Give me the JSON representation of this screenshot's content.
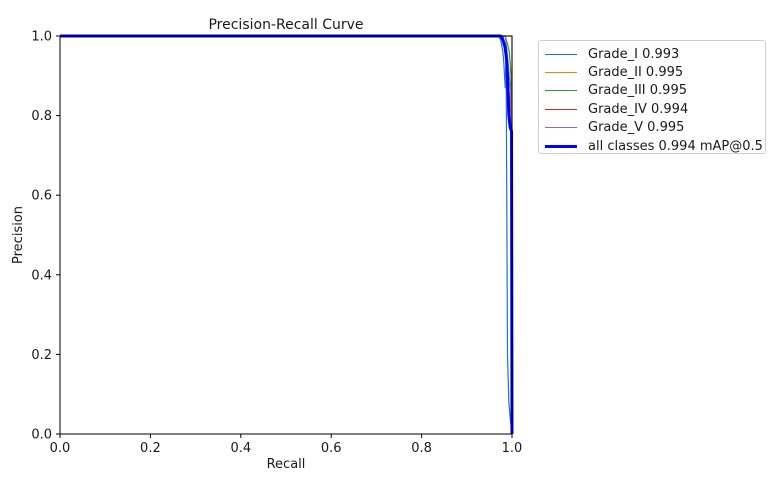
{
  "chart_data": {
    "type": "line",
    "title": "Precision-Recall Curve",
    "xlabel": "Recall",
    "ylabel": "Precision",
    "xlim": [
      0.0,
      1.0
    ],
    "ylim": [
      0.0,
      1.0
    ],
    "xticks": [
      "0.0",
      "0.2",
      "0.4",
      "0.6",
      "0.8",
      "1.0"
    ],
    "yticks": [
      "0.0",
      "0.2",
      "0.4",
      "0.6",
      "0.8",
      "1.0"
    ],
    "grid": false,
    "legend_position": "outside-right-top",
    "series": [
      {
        "name": "Grade_I 0.993",
        "color": "#1f77b4",
        "width": "thin",
        "x": [
          0.0,
          0.97,
          0.975,
          0.98,
          0.982,
          0.985,
          0.987,
          0.99,
          0.993,
          0.996,
          1.0
        ],
        "y": [
          1.0,
          1.0,
          0.99,
          0.96,
          0.93,
          0.87,
          0.95,
          0.2,
          0.08,
          0.04,
          0.0
        ]
      },
      {
        "name": "Grade_II 0.995",
        "color": "#ff7f0e",
        "width": "thin",
        "x": [
          0.0,
          0.99,
          0.995,
          0.998,
          1.0,
          1.0
        ],
        "y": [
          1.0,
          1.0,
          1.0,
          1.0,
          1.0,
          0.0
        ]
      },
      {
        "name": "Grade_III 0.995",
        "color": "#2ca02c",
        "width": "thin",
        "x": [
          0.0,
          0.985,
          0.99,
          0.994,
          0.998,
          1.0
        ],
        "y": [
          1.0,
          1.0,
          0.98,
          0.96,
          0.9,
          0.0
        ]
      },
      {
        "name": "Grade_IV 0.994",
        "color": "#d62728",
        "width": "thin",
        "x": [
          0.0,
          0.98,
          0.985,
          0.99,
          0.994,
          0.998,
          1.0
        ],
        "y": [
          1.0,
          1.0,
          0.97,
          0.92,
          0.85,
          0.8,
          0.0
        ]
      },
      {
        "name": "Grade_V 0.995",
        "color": "#9467bd",
        "width": "thin",
        "x": [
          0.0,
          0.985,
          0.99,
          0.994,
          0.997,
          1.0
        ],
        "y": [
          1.0,
          1.0,
          0.95,
          0.9,
          0.86,
          0.0
        ]
      },
      {
        "name": "all classes 0.994 mAP@0.5",
        "color": "#0000ff",
        "width": "thick",
        "x": [
          0.0,
          0.975,
          0.98,
          0.985,
          0.988,
          0.99,
          0.993,
          0.996,
          0.999,
          1.0
        ],
        "y": [
          1.0,
          1.0,
          0.99,
          0.97,
          0.94,
          0.9,
          0.8,
          0.77,
          0.76,
          0.0
        ]
      }
    ]
  }
}
